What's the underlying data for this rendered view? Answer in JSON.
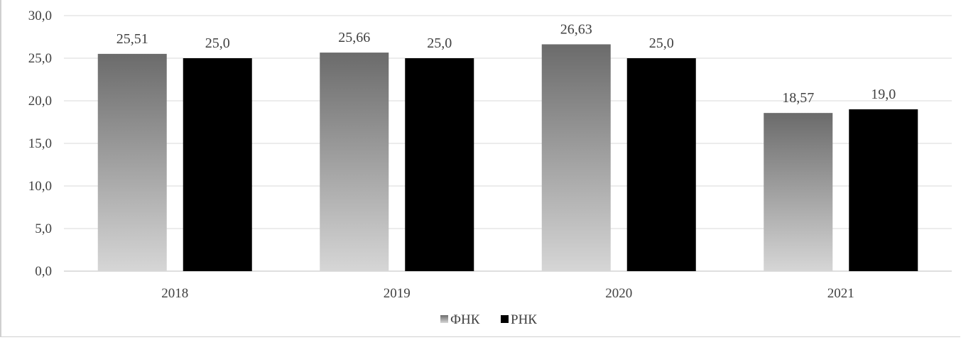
{
  "chart_data": {
    "type": "bar",
    "categories": [
      "2018",
      "2019",
      "2020",
      "2021"
    ],
    "series": [
      {
        "name": "ФНК",
        "values": [
          25.51,
          25.66,
          26.63,
          18.57
        ],
        "labels": [
          "25,51",
          "25,66",
          "26,63",
          "18,57"
        ],
        "fill": "gradient-gray"
      },
      {
        "name": "РНК",
        "values": [
          25.0,
          25.0,
          25.0,
          19.0
        ],
        "labels": [
          "25,0",
          "25,0",
          "25,0",
          "19,0"
        ],
        "fill": "#000000"
      }
    ],
    "ylim": [
      0,
      30
    ],
    "yticks": [
      0,
      5,
      10,
      15,
      20,
      25,
      30
    ],
    "ytick_labels": [
      "0,0",
      "5,0",
      "10,0",
      "15,0",
      "20,0",
      "25,0",
      "30,0"
    ],
    "grid": true,
    "legend_position": "bottom-center",
    "colors": {
      "gradient_top": "#6b6b6b",
      "gradient_bottom": "#d6d6d6",
      "series2": "#000000",
      "grid": "#d9d9d9",
      "axis": "#bfbfbf",
      "text": "#404040"
    }
  }
}
